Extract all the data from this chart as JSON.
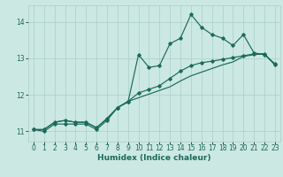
{
  "xlabel": "Humidex (Indice chaleur)",
  "bg_color": "#cce8e2",
  "grid_color": "#aacfc8",
  "line_color": "#1a6b5a",
  "xlim": [
    -0.5,
    23.5
  ],
  "ylim": [
    10.72,
    14.45
  ],
  "xticks": [
    0,
    1,
    2,
    3,
    4,
    5,
    6,
    7,
    8,
    9,
    10,
    11,
    12,
    13,
    14,
    15,
    16,
    17,
    18,
    19,
    20,
    21,
    22,
    23
  ],
  "yticks": [
    11,
    12,
    13,
    14
  ],
  "line1_x": [
    0,
    1,
    2,
    3,
    4,
    5,
    6,
    7,
    8,
    9,
    10,
    11,
    12,
    13,
    14,
    15,
    16,
    17,
    18,
    19,
    20,
    21,
    22,
    23
  ],
  "line1_y": [
    11.05,
    11.0,
    11.2,
    11.2,
    11.2,
    11.2,
    11.05,
    11.3,
    11.65,
    11.8,
    13.1,
    12.75,
    12.8,
    13.4,
    13.55,
    14.2,
    13.85,
    13.65,
    13.55,
    13.35,
    13.65,
    13.15,
    13.1,
    12.85
  ],
  "line2_x": [
    0,
    1,
    2,
    3,
    4,
    5,
    6,
    7,
    8,
    9,
    10,
    11,
    12,
    13,
    14,
    15,
    16,
    17,
    18,
    19,
    20,
    21,
    22,
    23
  ],
  "line2_y": [
    11.05,
    11.05,
    11.25,
    11.3,
    11.25,
    11.25,
    11.1,
    11.35,
    11.65,
    11.82,
    11.92,
    12.02,
    12.12,
    12.22,
    12.38,
    12.52,
    12.62,
    12.72,
    12.82,
    12.9,
    13.05,
    13.1,
    13.12,
    12.82
  ],
  "line3_x": [
    0,
    1,
    2,
    3,
    4,
    5,
    6,
    7,
    8,
    9,
    10,
    11,
    12,
    13,
    14,
    15,
    16,
    17,
    18,
    19,
    20,
    21,
    22,
    23
  ],
  "line3_y": [
    11.05,
    11.05,
    11.25,
    11.3,
    11.25,
    11.25,
    11.1,
    11.35,
    11.65,
    11.82,
    12.05,
    12.15,
    12.25,
    12.45,
    12.65,
    12.8,
    12.88,
    12.92,
    12.97,
    13.02,
    13.07,
    13.12,
    13.12,
    12.82
  ],
  "font_size_label": 6.5,
  "font_size_tick": 5.5
}
